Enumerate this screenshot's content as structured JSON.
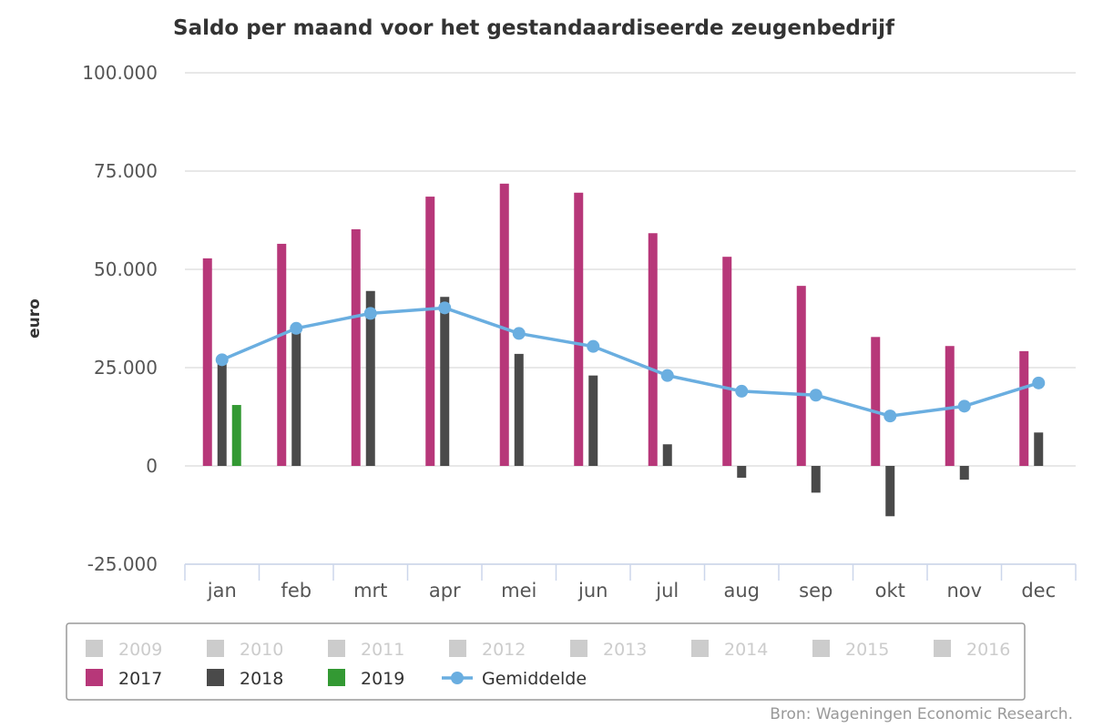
{
  "chart_data": {
    "type": "bar",
    "title": "Saldo per maand voor het gestandaardiseerde zeugenbedrijf",
    "xlabel": "",
    "ylabel": "euro",
    "ylim": [
      -25000,
      100000
    ],
    "yticks": [
      -25000,
      0,
      25000,
      50000,
      75000,
      100000
    ],
    "ytick_labels": [
      "-25.000",
      "0",
      "25.000",
      "50.000",
      "75.000",
      "100.000"
    ],
    "categories": [
      "jan",
      "feb",
      "mrt",
      "apr",
      "mei",
      "jun",
      "jul",
      "aug",
      "sep",
      "okt",
      "nov",
      "dec"
    ],
    "series": [
      {
        "name": "2017",
        "type": "bar",
        "color": "#b73779",
        "values": [
          52800,
          56500,
          60200,
          68500,
          71800,
          69500,
          59200,
          53200,
          45800,
          32800,
          30500,
          29200
        ]
      },
      {
        "name": "2018",
        "type": "bar",
        "color": "#4a4a4a",
        "values": [
          27000,
          35000,
          44500,
          43000,
          28500,
          23000,
          5500,
          -3000,
          -6800,
          -12800,
          -3500,
          8500
        ]
      },
      {
        "name": "2019",
        "type": "bar",
        "color": "#339933",
        "values": [
          15500,
          null,
          null,
          null,
          null,
          null,
          null,
          null,
          null,
          null,
          null,
          null
        ]
      },
      {
        "name": "Gemiddelde",
        "type": "line",
        "color": "#6aaee0",
        "values": [
          27000,
          35000,
          38800,
          40200,
          33700,
          30400,
          23000,
          19000,
          18000,
          12700,
          15200,
          21100
        ]
      }
    ],
    "hidden_series": [
      "2009",
      "2010",
      "2011",
      "2012",
      "2013",
      "2014",
      "2015",
      "2016"
    ],
    "legend_position": "bottom",
    "grid": true
  },
  "legend": {
    "hidden_items": [
      "2009",
      "2010",
      "2011",
      "2012",
      "2013",
      "2014",
      "2015",
      "2016"
    ],
    "visible_items": [
      "2017",
      "2018",
      "2019",
      "Gemiddelde"
    ],
    "hidden_color": "#cccccc",
    "hidden_text_color": "#cccccc",
    "text_color": "#333333"
  },
  "credits": "Bron: Wageningen Economic Research."
}
